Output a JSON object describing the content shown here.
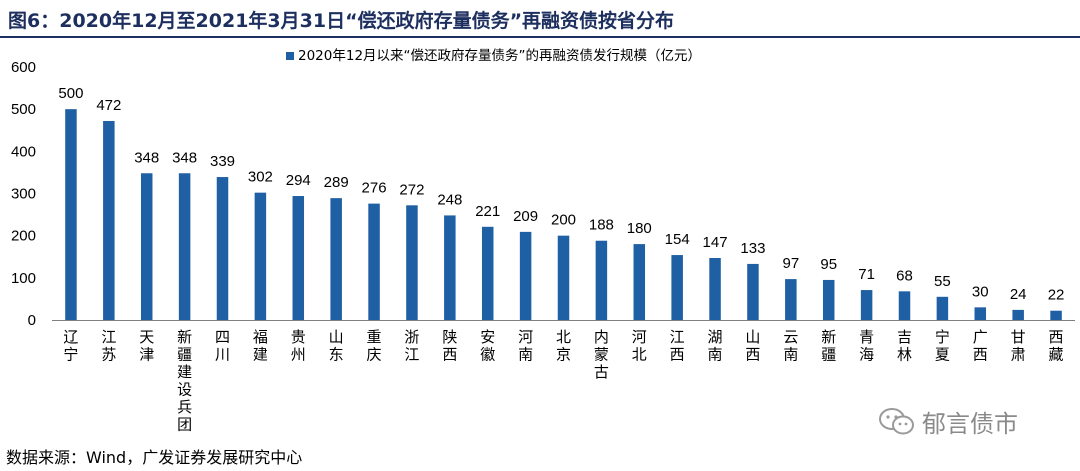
{
  "figure": {
    "title": "图6：2020年12月至2021年3月31日“偿还政府存量债务”再融资债按省分布"
  },
  "source": "数据来源：Wind，广发证券发展研究中心",
  "watermark": {
    "text": "郁言债市",
    "icon": "wechat-icon"
  },
  "colors": {
    "bar": "#1f5fa4",
    "axis": "#7f7f7f",
    "title": "#1d2f5e"
  },
  "chart_data": {
    "type": "bar",
    "title": "",
    "xlabel": "",
    "ylabel": "",
    "ylim": [
      0,
      600
    ],
    "yticks": [
      0,
      100,
      200,
      300,
      400,
      500,
      600
    ],
    "grid": false,
    "legend_position": "top-center",
    "categories": [
      "辽宁",
      "江苏",
      "天津",
      "新疆建设兵团",
      "四川",
      "福建",
      "贵州",
      "山东",
      "重庆",
      "浙江",
      "陕西",
      "安徽",
      "河南",
      "北京",
      "内蒙古",
      "河北",
      "江西",
      "湖南",
      "山西",
      "云南",
      "新疆",
      "青海",
      "吉林",
      "宁夏",
      "广西",
      "甘肃",
      "西藏"
    ],
    "series": [
      {
        "name": "2020年12月以来“偿还政府存量债务”的再融资债发行规模（亿元）",
        "values": [
          500,
          472,
          348,
          348,
          339,
          302,
          294,
          289,
          276,
          272,
          248,
          221,
          209,
          200,
          188,
          180,
          154,
          147,
          133,
          97,
          95,
          71,
          68,
          55,
          30,
          24,
          22
        ]
      }
    ]
  }
}
